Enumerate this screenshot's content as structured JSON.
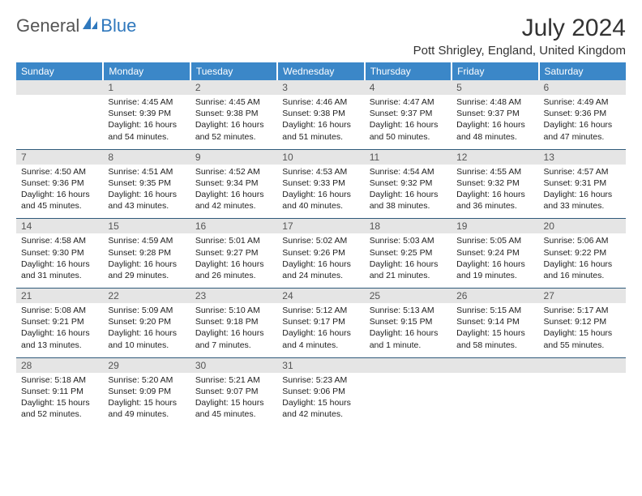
{
  "brand": {
    "part1": "General",
    "part2": "Blue"
  },
  "title": "July 2024",
  "location": "Pott Shrigley, England, United Kingdom",
  "day_headers": [
    "Sunday",
    "Monday",
    "Tuesday",
    "Wednesday",
    "Thursday",
    "Friday",
    "Saturday"
  ],
  "colors": {
    "header_bg": "#3b87c8",
    "header_fg": "#ffffff",
    "daynum_bg": "#e5e5e5",
    "row_divider": "#2f5a7a",
    "logo_accent": "#2f78bd"
  },
  "weeks": [
    [
      {
        "num": "",
        "lines": []
      },
      {
        "num": "1",
        "lines": [
          "Sunrise: 4:45 AM",
          "Sunset: 9:39 PM",
          "Daylight: 16 hours",
          "and 54 minutes."
        ]
      },
      {
        "num": "2",
        "lines": [
          "Sunrise: 4:45 AM",
          "Sunset: 9:38 PM",
          "Daylight: 16 hours",
          "and 52 minutes."
        ]
      },
      {
        "num": "3",
        "lines": [
          "Sunrise: 4:46 AM",
          "Sunset: 9:38 PM",
          "Daylight: 16 hours",
          "and 51 minutes."
        ]
      },
      {
        "num": "4",
        "lines": [
          "Sunrise: 4:47 AM",
          "Sunset: 9:37 PM",
          "Daylight: 16 hours",
          "and 50 minutes."
        ]
      },
      {
        "num": "5",
        "lines": [
          "Sunrise: 4:48 AM",
          "Sunset: 9:37 PM",
          "Daylight: 16 hours",
          "and 48 minutes."
        ]
      },
      {
        "num": "6",
        "lines": [
          "Sunrise: 4:49 AM",
          "Sunset: 9:36 PM",
          "Daylight: 16 hours",
          "and 47 minutes."
        ]
      }
    ],
    [
      {
        "num": "7",
        "lines": [
          "Sunrise: 4:50 AM",
          "Sunset: 9:36 PM",
          "Daylight: 16 hours",
          "and 45 minutes."
        ]
      },
      {
        "num": "8",
        "lines": [
          "Sunrise: 4:51 AM",
          "Sunset: 9:35 PM",
          "Daylight: 16 hours",
          "and 43 minutes."
        ]
      },
      {
        "num": "9",
        "lines": [
          "Sunrise: 4:52 AM",
          "Sunset: 9:34 PM",
          "Daylight: 16 hours",
          "and 42 minutes."
        ]
      },
      {
        "num": "10",
        "lines": [
          "Sunrise: 4:53 AM",
          "Sunset: 9:33 PM",
          "Daylight: 16 hours",
          "and 40 minutes."
        ]
      },
      {
        "num": "11",
        "lines": [
          "Sunrise: 4:54 AM",
          "Sunset: 9:32 PM",
          "Daylight: 16 hours",
          "and 38 minutes."
        ]
      },
      {
        "num": "12",
        "lines": [
          "Sunrise: 4:55 AM",
          "Sunset: 9:32 PM",
          "Daylight: 16 hours",
          "and 36 minutes."
        ]
      },
      {
        "num": "13",
        "lines": [
          "Sunrise: 4:57 AM",
          "Sunset: 9:31 PM",
          "Daylight: 16 hours",
          "and 33 minutes."
        ]
      }
    ],
    [
      {
        "num": "14",
        "lines": [
          "Sunrise: 4:58 AM",
          "Sunset: 9:30 PM",
          "Daylight: 16 hours",
          "and 31 minutes."
        ]
      },
      {
        "num": "15",
        "lines": [
          "Sunrise: 4:59 AM",
          "Sunset: 9:28 PM",
          "Daylight: 16 hours",
          "and 29 minutes."
        ]
      },
      {
        "num": "16",
        "lines": [
          "Sunrise: 5:01 AM",
          "Sunset: 9:27 PM",
          "Daylight: 16 hours",
          "and 26 minutes."
        ]
      },
      {
        "num": "17",
        "lines": [
          "Sunrise: 5:02 AM",
          "Sunset: 9:26 PM",
          "Daylight: 16 hours",
          "and 24 minutes."
        ]
      },
      {
        "num": "18",
        "lines": [
          "Sunrise: 5:03 AM",
          "Sunset: 9:25 PM",
          "Daylight: 16 hours",
          "and 21 minutes."
        ]
      },
      {
        "num": "19",
        "lines": [
          "Sunrise: 5:05 AM",
          "Sunset: 9:24 PM",
          "Daylight: 16 hours",
          "and 19 minutes."
        ]
      },
      {
        "num": "20",
        "lines": [
          "Sunrise: 5:06 AM",
          "Sunset: 9:22 PM",
          "Daylight: 16 hours",
          "and 16 minutes."
        ]
      }
    ],
    [
      {
        "num": "21",
        "lines": [
          "Sunrise: 5:08 AM",
          "Sunset: 9:21 PM",
          "Daylight: 16 hours",
          "and 13 minutes."
        ]
      },
      {
        "num": "22",
        "lines": [
          "Sunrise: 5:09 AM",
          "Sunset: 9:20 PM",
          "Daylight: 16 hours",
          "and 10 minutes."
        ]
      },
      {
        "num": "23",
        "lines": [
          "Sunrise: 5:10 AM",
          "Sunset: 9:18 PM",
          "Daylight: 16 hours",
          "and 7 minutes."
        ]
      },
      {
        "num": "24",
        "lines": [
          "Sunrise: 5:12 AM",
          "Sunset: 9:17 PM",
          "Daylight: 16 hours",
          "and 4 minutes."
        ]
      },
      {
        "num": "25",
        "lines": [
          "Sunrise: 5:13 AM",
          "Sunset: 9:15 PM",
          "Daylight: 16 hours",
          "and 1 minute."
        ]
      },
      {
        "num": "26",
        "lines": [
          "Sunrise: 5:15 AM",
          "Sunset: 9:14 PM",
          "Daylight: 15 hours",
          "and 58 minutes."
        ]
      },
      {
        "num": "27",
        "lines": [
          "Sunrise: 5:17 AM",
          "Sunset: 9:12 PM",
          "Daylight: 15 hours",
          "and 55 minutes."
        ]
      }
    ],
    [
      {
        "num": "28",
        "lines": [
          "Sunrise: 5:18 AM",
          "Sunset: 9:11 PM",
          "Daylight: 15 hours",
          "and 52 minutes."
        ]
      },
      {
        "num": "29",
        "lines": [
          "Sunrise: 5:20 AM",
          "Sunset: 9:09 PM",
          "Daylight: 15 hours",
          "and 49 minutes."
        ]
      },
      {
        "num": "30",
        "lines": [
          "Sunrise: 5:21 AM",
          "Sunset: 9:07 PM",
          "Daylight: 15 hours",
          "and 45 minutes."
        ]
      },
      {
        "num": "31",
        "lines": [
          "Sunrise: 5:23 AM",
          "Sunset: 9:06 PM",
          "Daylight: 15 hours",
          "and 42 minutes."
        ]
      },
      {
        "num": "",
        "lines": []
      },
      {
        "num": "",
        "lines": []
      },
      {
        "num": "",
        "lines": []
      }
    ]
  ]
}
